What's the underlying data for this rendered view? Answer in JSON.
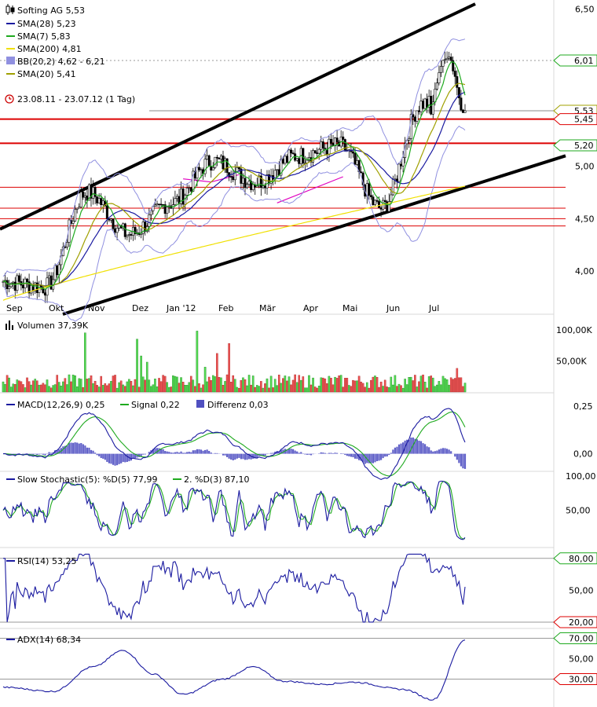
{
  "chart_data": [
    {
      "type": "candlestick",
      "panel": "price",
      "title": "Softing AG 5,53",
      "x_labels": [
        "Sep",
        "Okt",
        "Nov",
        "Dez",
        "Jan '12",
        "Feb",
        "Mär",
        "Apr",
        "Mai",
        "Jun",
        "Jul"
      ],
      "y_ticks": [
        "6,50",
        "6,00",
        "5,50",
        "5,00",
        "4,50",
        "4,00"
      ],
      "ylim": [
        3.7,
        6.55
      ],
      "last_value": 5.53,
      "date_range_label": "23.08.11 - 23.07.12 (1 Tag)",
      "legend": [
        {
          "label": "SMA(28) 5,23",
          "color": "#1a1aa0"
        },
        {
          "label": "SMA(7) 5,83",
          "color": "#1faa1f"
        },
        {
          "label": "SMA(200) 4,81",
          "color": "#f0e000"
        },
        {
          "label": "BB(20,2) 4,62 - 6,21",
          "color": "#8080e0"
        },
        {
          "label": "SMA(20) 5,41",
          "color": "#a0a000"
        }
      ],
      "price_tags": [
        {
          "label": "6,01",
          "value": 6.01,
          "color": "#1faa1f"
        },
        {
          "label": "5,53",
          "value": 5.53,
          "color": "#a0a000"
        },
        {
          "label": "5,45",
          "value": 5.45,
          "color": "#dd0000"
        },
        {
          "label": "5,20",
          "value": 5.2,
          "color": "#1faa1f"
        }
      ],
      "horizontal_lines": [
        5.45,
        5.22,
        4.8,
        4.6,
        4.5,
        4.43
      ],
      "key_points": [
        {
          "date": "Sep",
          "close": 3.9
        },
        {
          "date": "Okt",
          "close": 3.85
        },
        {
          "date": "Nov",
          "close": 4.75
        },
        {
          "date": "Dez",
          "close": 4.35
        },
        {
          "date": "Jan '12",
          "close": 4.65
        },
        {
          "date": "Feb",
          "close": 5.05
        },
        {
          "date": "Mär",
          "close": 4.85
        },
        {
          "date": "Apr",
          "close": 5.1
        },
        {
          "date": "Mai",
          "close": 5.2
        },
        {
          "date": "Jun",
          "close": 4.6
        },
        {
          "date": "Jul",
          "close": 5.6
        },
        {
          "date": "Jul end",
          "close": 5.53
        }
      ]
    },
    {
      "type": "bar",
      "panel": "volume",
      "title": "Volumen 37,39K",
      "y_ticks": [
        "100,00K",
        "50,00K"
      ],
      "ylim": [
        0,
        125
      ]
    },
    {
      "type": "line",
      "panel": "macd",
      "title": "MACD(12,26,9) 0,25",
      "series": [
        {
          "name": "Signal 0,22",
          "color": "#1faa1f"
        },
        {
          "name": "Differenz 0,03",
          "color": "#5050c0"
        }
      ],
      "y_ticks": [
        "0,25",
        "0,00"
      ],
      "ylim": [
        -0.08,
        0.3
      ]
    },
    {
      "type": "line",
      "panel": "stochastic",
      "title": "Slow Stochastic(5): %D(5) 77,99",
      "series": [
        {
          "name": "2. %D(3) 87,10",
          "color": "#1faa1f"
        }
      ],
      "y_ticks": [
        "100,00",
        "50,00"
      ],
      "ylim": [
        0,
        100
      ]
    },
    {
      "type": "line",
      "panel": "rsi",
      "title": "RSI(14) 53,25",
      "y_ticks": [
        "50,00"
      ],
      "tags": [
        "80,00",
        "20,00"
      ],
      "ylim": [
        17,
        85
      ]
    },
    {
      "type": "line",
      "panel": "adx",
      "title": "ADX(14) 68,34",
      "y_ticks": [
        "50,00"
      ],
      "tags": [
        "70,00",
        "30,00"
      ],
      "ylim": [
        5,
        75
      ]
    }
  ]
}
